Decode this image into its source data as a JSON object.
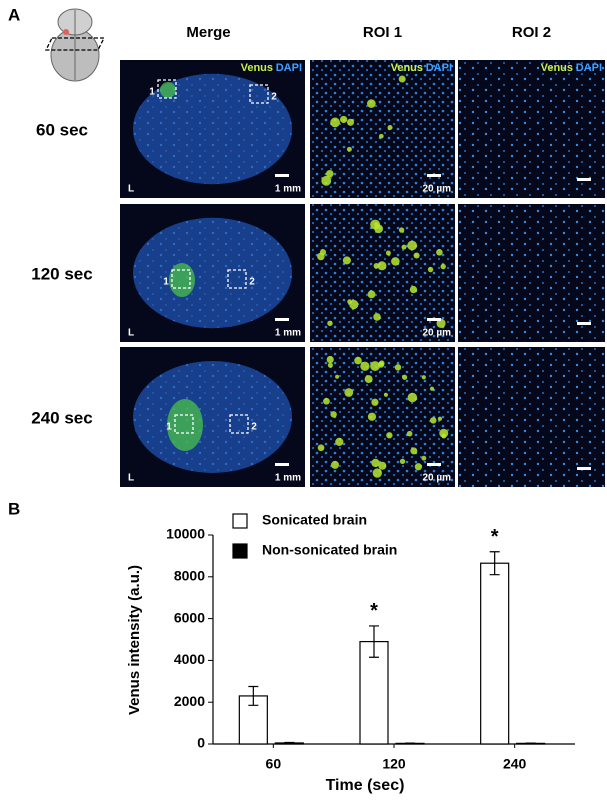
{
  "panel_a": {
    "label": "A",
    "columns": [
      "Merge",
      "ROI 1",
      "ROI 2"
    ],
    "rows": [
      {
        "label": "60 sec",
        "merge": {
          "channels": [
            "Venus",
            "DAPI"
          ],
          "roi_labels": [
            "1",
            "2"
          ],
          "side": "L",
          "scale": "1 mm"
        },
        "roi1": {
          "channels": [
            "Venus",
            "DAPI"
          ],
          "scale": "20 µm"
        },
        "roi2": {
          "channels": [
            "Venus",
            "DAPI"
          ]
        }
      },
      {
        "label": "120 sec",
        "merge": {
          "roi_labels": [
            "1",
            "2"
          ],
          "side": "L",
          "scale": "1 mm"
        },
        "roi1": {
          "scale": "20 µm"
        },
        "roi2": {}
      },
      {
        "label": "240 sec",
        "merge": {
          "roi_labels": [
            "1",
            "2"
          ],
          "side": "L",
          "scale": "1 mm"
        },
        "roi1": {
          "scale": "20 µm"
        },
        "roi2": {}
      }
    ]
  },
  "panel_b_label": "B",
  "chart_data": {
    "type": "bar",
    "y_label": "Venus intensity (a.u.)",
    "x_label": "Time (sec)",
    "categories": [
      "60",
      "120",
      "240"
    ],
    "series": [
      {
        "name": "Sonicated brain",
        "color": "#ffffff",
        "values": [
          2300,
          4900,
          8650
        ],
        "errors": [
          450,
          750,
          550
        ]
      },
      {
        "name": "Non-sonicated brain",
        "color": "#000000",
        "values": [
          50,
          30,
          30
        ],
        "errors": [
          20,
          15,
          15
        ]
      }
    ],
    "significance": [
      null,
      "*",
      "*"
    ],
    "ylim": [
      0,
      10000
    ],
    "yticks": [
      0,
      2000,
      4000,
      6000,
      8000,
      10000
    ],
    "grid": false
  }
}
